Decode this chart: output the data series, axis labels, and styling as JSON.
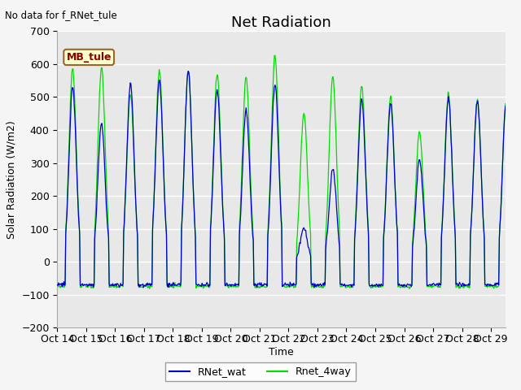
{
  "title": "Net Radiation",
  "top_left_text": "No data for f_RNet_tule",
  "xlabel": "Time",
  "ylabel": "Solar Radiation (W/m2)",
  "ylim": [
    -200,
    700
  ],
  "yticks": [
    -200,
    -100,
    0,
    100,
    200,
    300,
    400,
    500,
    600,
    700
  ],
  "xlim_days": 15.5,
  "n_days": 15,
  "xtick_labels": [
    "Oct 14",
    "Oct 15",
    "Oct 16",
    "Oct 17",
    "Oct 18",
    "Oct 19",
    "Oct 20",
    "Oct 21",
    "Oct 22",
    "Oct 23",
    "Oct 24",
    "Oct 25",
    "Oct 26",
    "Oct 27",
    "Oct 28",
    "Oct 29"
  ],
  "color_blue": "#0000cc",
  "color_green": "#00dd00",
  "legend_entries": [
    "RNet_wat",
    "Rnet_4way"
  ],
  "legend_box_color": "#ffffcc",
  "legend_box_label": "MB_tule",
  "bg_color": "#e8e8e8",
  "grid_color": "#ffffff",
  "title_fontsize": 13,
  "label_fontsize": 9,
  "tick_fontsize": 9,
  "night_blue": -70,
  "night_green": -75,
  "day_peaks_blue": [
    530,
    420,
    540,
    550,
    580,
    520,
    460,
    540,
    100,
    280,
    490,
    480,
    310,
    490,
    490
  ],
  "day_peaks_green": [
    585,
    590,
    510,
    580,
    580,
    570,
    560,
    625,
    450,
    560,
    535,
    500,
    395,
    510,
    490
  ]
}
